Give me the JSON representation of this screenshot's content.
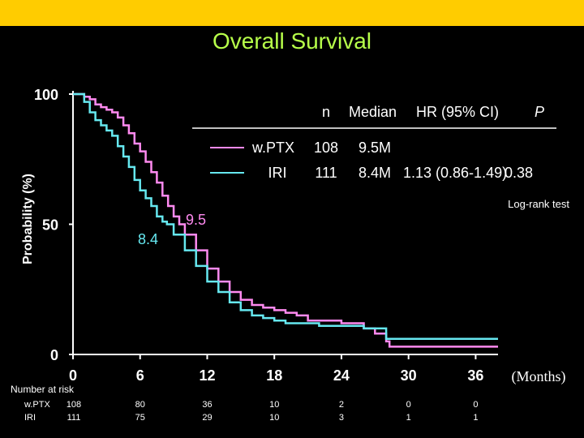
{
  "colors": {
    "top_bar": "#FFCC00",
    "title": "#B7FF4A",
    "axis": "#FFFFFF",
    "series_wptx": "#FF8AF0",
    "series_iri": "#66E8F0"
  },
  "chart_data": {
    "type": "line",
    "title": "Overall Survival",
    "ylabel": "Probability (%)",
    "xlabel": "(Months)",
    "xlim": [
      0,
      38
    ],
    "ylim": [
      0,
      100
    ],
    "x_ticks": [
      "0",
      "6",
      "12",
      "18",
      "24",
      "30",
      "36"
    ],
    "x_tick_values": [
      0,
      6,
      12,
      18,
      24,
      30,
      36
    ],
    "y_ticks": [
      "0",
      "50",
      "100"
    ],
    "y_tick_values": [
      0,
      50,
      100
    ],
    "legend": {
      "header": {
        "n": "n",
        "median": "Median",
        "hr": "HR (95% CI)",
        "p": "P"
      },
      "rows": [
        {
          "name": "w.PTX",
          "n": "108",
          "median": "9.5M",
          "hr": "",
          "p": ""
        },
        {
          "name": "IRI",
          "n": "111",
          "median": "8.4M",
          "hr": "1.13 (0.86-1.49)",
          "p": "0.38"
        }
      ],
      "note": "Log-rank test"
    },
    "annotations": [
      {
        "text": "9.5",
        "series": "w.PTX"
      },
      {
        "text": "8.4",
        "series": "IRI"
      }
    ],
    "series": [
      {
        "name": "w.PTX",
        "x": [
          0,
          1,
          1.5,
          2,
          2.5,
          3,
          3.5,
          4,
          4.5,
          5,
          5.5,
          6,
          6.5,
          7,
          7.5,
          8,
          8.5,
          9,
          9.5,
          10,
          11,
          12,
          13,
          14,
          15,
          16,
          17,
          18,
          19,
          20,
          21,
          22,
          24,
          26,
          27,
          28,
          28.3,
          36,
          38
        ],
        "values": [
          100,
          99,
          98,
          96,
          95,
          94,
          93,
          91,
          88,
          85,
          81,
          78,
          74,
          70,
          66,
          61,
          57,
          53,
          50,
          46,
          40,
          33,
          28,
          24,
          21,
          19,
          18,
          17,
          16,
          15,
          13,
          13,
          12,
          10,
          8,
          5,
          3,
          3,
          3
        ]
      },
      {
        "name": "IRI",
        "x": [
          0,
          1,
          1.5,
          2,
          2.5,
          3,
          3.5,
          4,
          4.5,
          5,
          5.5,
          6,
          6.5,
          7,
          7.5,
          8,
          8.4,
          9,
          10,
          11,
          12,
          13,
          14,
          15,
          16,
          17,
          18,
          19,
          20,
          22,
          24,
          26,
          28,
          30,
          32,
          36,
          38
        ],
        "values": [
          100,
          97,
          93,
          90,
          88,
          86,
          84,
          80,
          76,
          72,
          67,
          63,
          60,
          57,
          53,
          51,
          50,
          46,
          40,
          34,
          28,
          24,
          20,
          17,
          15,
          14,
          13,
          12,
          12,
          11,
          11,
          10,
          6,
          6,
          6,
          6,
          6
        ]
      }
    ]
  },
  "risk_table": {
    "title": "Number at risk",
    "rows": [
      {
        "label": "w.PTX",
        "values": [
          "108",
          "80",
          "36",
          "10",
          "2",
          "0",
          "0"
        ]
      },
      {
        "label": "IRI",
        "values": [
          "111",
          "75",
          "29",
          "10",
          "3",
          "1",
          "1"
        ]
      }
    ]
  }
}
